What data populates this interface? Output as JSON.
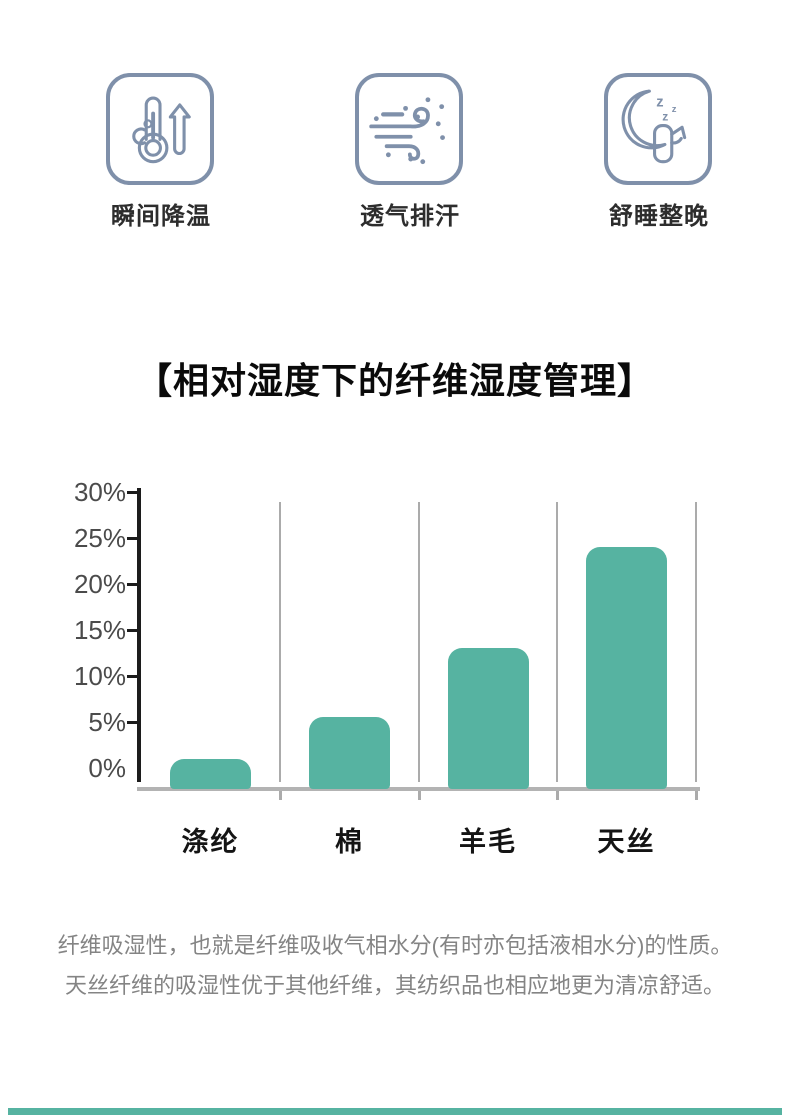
{
  "features": [
    {
      "label": "瞬间降温",
      "icon": "thermometer-rise-icon"
    },
    {
      "label": "透气排汗",
      "icon": "breeze-icon"
    },
    {
      "label": "舒睡整晚",
      "icon": "sleep-moon-icon"
    }
  ],
  "section_title": "【相对湿度下的纤维湿度管理】",
  "chart_data": {
    "type": "bar",
    "title": "相对湿度下的纤维湿度管理",
    "categories": [
      "涤纶",
      "棉",
      "羊毛",
      "天丝"
    ],
    "values": [
      1,
      5.5,
      13,
      24
    ],
    "unit": "%",
    "xlabel": "",
    "ylabel": "",
    "ylim": [
      0,
      30
    ],
    "yticks": [
      0,
      5,
      10,
      15,
      20,
      25,
      30
    ],
    "ytick_labels": [
      "0%",
      "5%",
      "10%",
      "15%",
      "20%",
      "25%",
      "30%"
    ],
    "grid": "vertical category separators",
    "legend": "none",
    "bar_color": "#56b3a1",
    "axis_color": "#1c1c1c",
    "grid_color": "#ababab"
  },
  "description": {
    "line1": "纤维吸湿性，也就是纤维吸收气相水分(有时亦包括液相水分)的性质。",
    "line2": "天丝纤维的吸湿性优于其他纤维，其纺织品也相应地更为清凉舒适。"
  },
  "colors": {
    "accent_teal": "#56b3a1",
    "icon_stroke": "#7f90aa",
    "muted_text": "#848484"
  }
}
